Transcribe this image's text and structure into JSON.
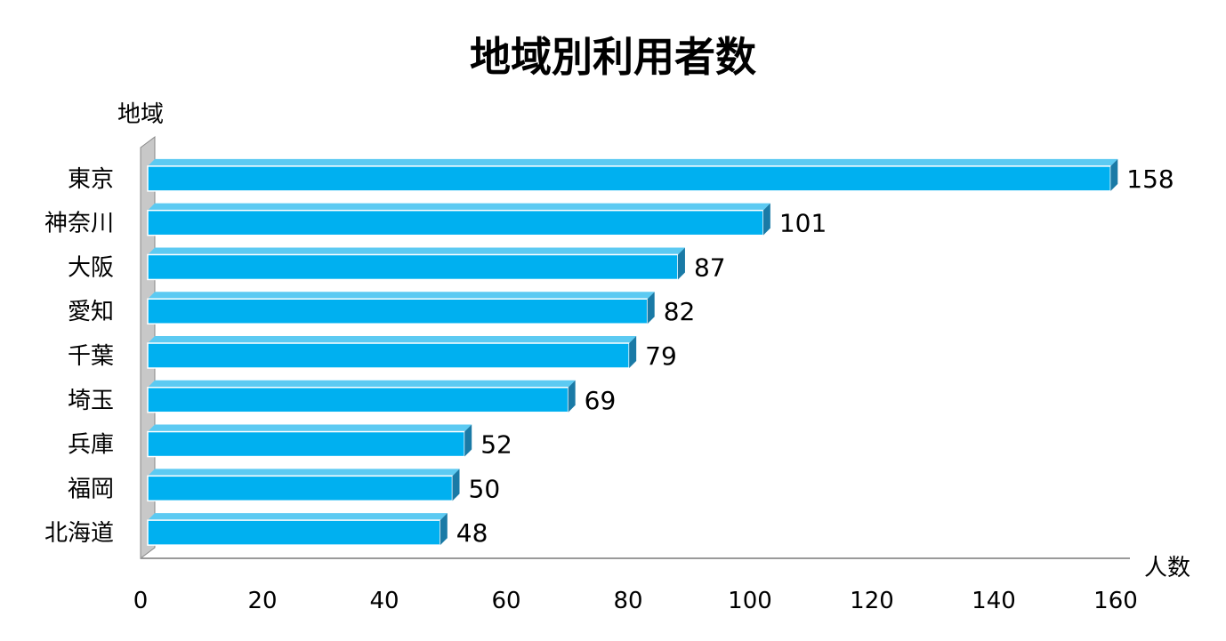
{
  "chart_data": {
    "type": "bar",
    "orientation": "horizontal",
    "title": "地域別利用者数",
    "ylabel": "地域",
    "xlabel": "人数",
    "categories": [
      "東京",
      "神奈川",
      "大阪",
      "愛知",
      "千葉",
      "埼玉",
      "兵庫",
      "福岡",
      "北海道"
    ],
    "values": [
      158,
      101,
      87,
      82,
      79,
      69,
      52,
      50,
      48
    ],
    "xlim": [
      0,
      160
    ],
    "xticks": [
      0,
      20,
      40,
      60,
      80,
      100,
      120,
      140,
      160
    ],
    "grid": false,
    "legend": "none",
    "bar_color": "#00b0f0",
    "bar_side_color": "#1a7aa6"
  }
}
